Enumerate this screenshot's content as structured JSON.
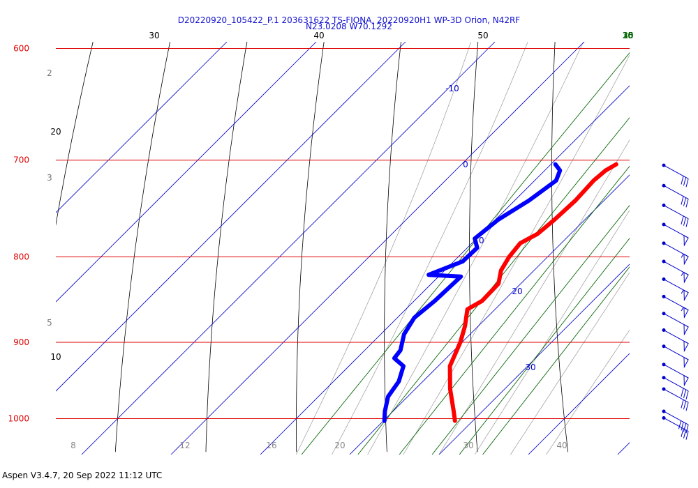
{
  "title_line1": "D20220920_105422_P.1 203631622 TS-FIONA, 20220920H1 WP-3D Orion, N42RF",
  "title_line2": "N23.0208 W70.1292",
  "footer": "Aspen V3.4.7, 20 Sep 2022  11:12 UTC",
  "colors": {
    "isobar": "#e00000",
    "isotherm": "#0000cc",
    "dry_adiabat": "#000000",
    "mixing_ratio": "#006400",
    "moist_adiabat": "#999999",
    "temperature": "#ff0000",
    "dewpoint": "#0000ff",
    "wind_barb": "#0000cc"
  },
  "chart_data": {
    "type": "skew-t log-p",
    "pressure_levels": [
      "600",
      "700",
      "800",
      "900",
      "1000"
    ],
    "bottom_labels": [
      "8",
      "12",
      "16",
      "20",
      "30",
      "40"
    ],
    "isotherm_labels": [
      "-10",
      "0",
      "10",
      "20",
      "30"
    ],
    "mixing_ratio_labels": [
      "10",
      "15",
      "20",
      "25",
      "30",
      "35"
    ],
    "dry_adiabat_labels": [
      "30",
      "40",
      "50",
      "20",
      "10"
    ],
    "moist_adiabat_labels": [
      "2",
      "3",
      "5"
    ],
    "temperature_profile": [
      {
        "p": 704,
        "t": 17.3
      },
      {
        "p": 710,
        "t": 16.8
      },
      {
        "p": 720,
        "t": 16.6
      },
      {
        "p": 740,
        "t": 16.8
      },
      {
        "p": 760,
        "t": 16.6
      },
      {
        "p": 775,
        "t": 16.3
      },
      {
        "p": 785,
        "t": 15.4
      },
      {
        "p": 800,
        "t": 15.7
      },
      {
        "p": 815,
        "t": 16.3
      },
      {
        "p": 830,
        "t": 17.5
      },
      {
        "p": 850,
        "t": 17.6
      },
      {
        "p": 860,
        "t": 16.9
      },
      {
        "p": 880,
        "t": 18.5
      },
      {
        "p": 900,
        "t": 19.8
      },
      {
        "p": 930,
        "t": 21.3
      },
      {
        "p": 960,
        "t": 23.9
      },
      {
        "p": 990,
        "t": 26.8
      },
      {
        "p": 1003,
        "t": 28.0
      }
    ],
    "dewpoint_profile": [
      {
        "p": 704,
        "td": 10.5
      },
      {
        "p": 710,
        "td": 11.7
      },
      {
        "p": 720,
        "td": 12.4
      },
      {
        "p": 740,
        "td": 11.6
      },
      {
        "p": 760,
        "td": 10.3
      },
      {
        "p": 780,
        "td": 9.8
      },
      {
        "p": 790,
        "td": 11.1
      },
      {
        "p": 805,
        "td": 11.0
      },
      {
        "p": 820,
        "td": 8.7
      },
      {
        "p": 822,
        "td": 12.5
      },
      {
        "p": 850,
        "td": 12.3
      },
      {
        "p": 870,
        "td": 11.9
      },
      {
        "p": 890,
        "td": 12.6
      },
      {
        "p": 910,
        "td": 14.0
      },
      {
        "p": 920,
        "td": 14.2
      },
      {
        "p": 930,
        "td": 16.1
      },
      {
        "p": 950,
        "td": 17.3
      },
      {
        "p": 970,
        "td": 17.8
      },
      {
        "p": 990,
        "td": 19.1
      },
      {
        "p": 1003,
        "td": 20.1
      }
    ],
    "wind_barbs_kt": [
      {
        "p": 705,
        "kt": 30
      },
      {
        "p": 725,
        "kt": 30
      },
      {
        "p": 745,
        "kt": 30
      },
      {
        "p": 765,
        "kt": 50
      },
      {
        "p": 785,
        "kt": 55
      },
      {
        "p": 805,
        "kt": 55
      },
      {
        "p": 825,
        "kt": 55
      },
      {
        "p": 845,
        "kt": 55
      },
      {
        "p": 865,
        "kt": 50
      },
      {
        "p": 885,
        "kt": 50
      },
      {
        "p": 905,
        "kt": 50
      },
      {
        "p": 928,
        "kt": 50
      },
      {
        "p": 945,
        "kt": 30
      },
      {
        "p": 960,
        "kt": 30
      },
      {
        "p": 990,
        "kt": 40
      },
      {
        "p": 999,
        "kt": 30
      }
    ]
  }
}
